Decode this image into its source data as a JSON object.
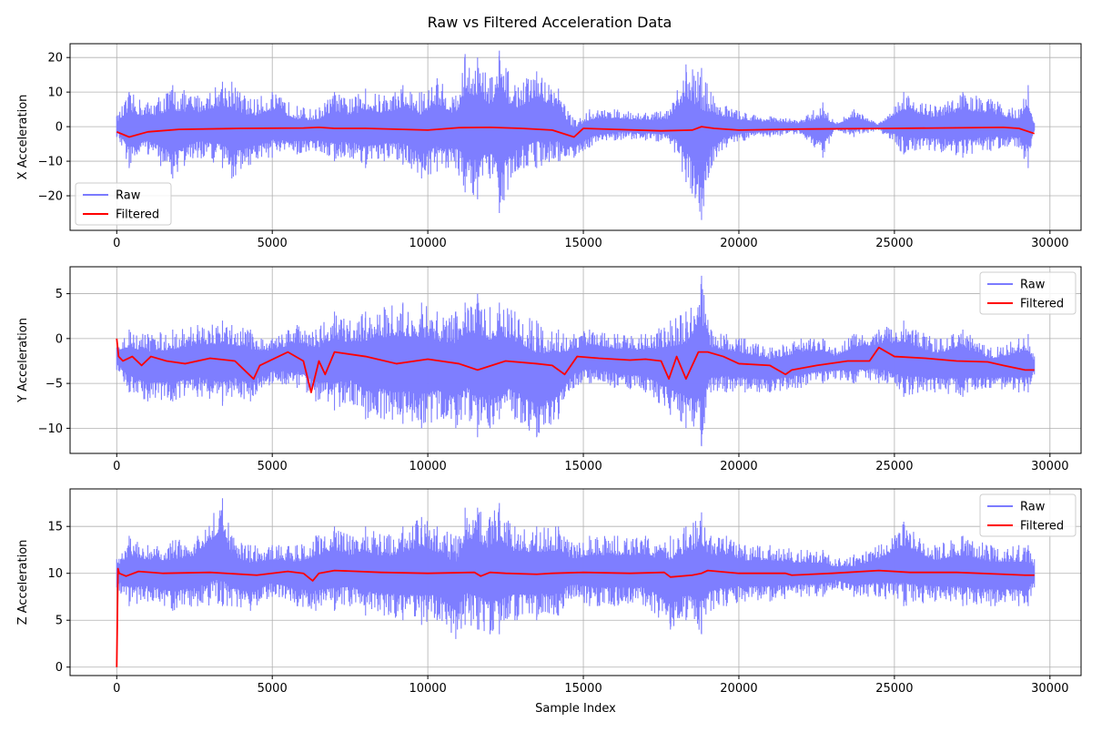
{
  "figure": {
    "title": "Raw vs Filtered Acceleration Data"
  },
  "chart_data": [
    {
      "type": "line",
      "title": "",
      "xlabel": "",
      "ylabel": "X Acceleration",
      "xlim": [
        -1500,
        31000
      ],
      "ylim": [
        -30,
        24
      ],
      "xticks": [
        0,
        5000,
        10000,
        15000,
        20000,
        25000,
        30000
      ],
      "yticks": [
        -20,
        -10,
        0,
        10,
        20
      ],
      "grid": true,
      "legend": "lower-left",
      "series": [
        {
          "name": "Raw",
          "color": "#7b7bff",
          "x": [
            0,
            400,
            1000,
            1800,
            2600,
            3400,
            3700,
            4300,
            5000,
            5800,
            6400,
            7000,
            7500,
            8000,
            8600,
            9200,
            9800,
            10300,
            10900,
            11200,
            11600,
            12000,
            12300,
            12800,
            13500,
            14200,
            14700,
            15200,
            16000,
            17000,
            17800,
            18300,
            18800,
            19100,
            19600,
            20200,
            21000,
            22000,
            22700,
            23100,
            23700,
            24500,
            25300,
            26300,
            27200,
            28100,
            29000,
            29300,
            29500
          ],
          "high": [
            3,
            10,
            7,
            12,
            9,
            13,
            13,
            8,
            10,
            6,
            5,
            10,
            8,
            11,
            9,
            12,
            10,
            14,
            9,
            21,
            20,
            14,
            22,
            12,
            16,
            11,
            2,
            5,
            5,
            4,
            5,
            18,
            17,
            10,
            6,
            4,
            3,
            2,
            7,
            1,
            5,
            1,
            10,
            6,
            10,
            8,
            5,
            12,
            1
          ],
          "low": [
            -3,
            -12,
            -8,
            -15,
            -9,
            -12,
            -15,
            -11,
            -9,
            -8,
            -7,
            -10,
            -9,
            -12,
            -10,
            -11,
            -15,
            -13,
            -12,
            -19,
            -21,
            -15,
            -25,
            -13,
            -12,
            -10,
            -9,
            -6,
            -4,
            -4,
            -5,
            -16,
            -27,
            -12,
            -6,
            -4,
            -3,
            -2,
            -9,
            -1,
            -3,
            -1,
            -8,
            -7,
            -9,
            -7,
            -6,
            -12,
            -1
          ]
        },
        {
          "name": "Filtered",
          "color": "#ff0000",
          "x": [
            0,
            400,
            1000,
            2000,
            4000,
            6000,
            6500,
            7000,
            8000,
            10000,
            11000,
            12000,
            13000,
            14000,
            14700,
            15000,
            16000,
            17500,
            18500,
            18800,
            19200,
            20000,
            22000,
            25000,
            27500,
            28500,
            29000,
            29500
          ],
          "y": [
            -1.5,
            -3,
            -1.5,
            -0.8,
            -0.5,
            -0.4,
            -0.2,
            -0.5,
            -0.5,
            -1,
            -0.3,
            -0.2,
            -0.5,
            -1,
            -3,
            -0.5,
            -0.8,
            -1.2,
            -1,
            0,
            -0.5,
            -1,
            -0.7,
            -0.5,
            -0.3,
            -0.2,
            -0.5,
            -2
          ]
        }
      ]
    },
    {
      "type": "line",
      "title": "",
      "xlabel": "",
      "ylabel": "Y Acceleration",
      "xlim": [
        -1500,
        31000
      ],
      "ylim": [
        -12.8,
        8
      ],
      "xticks": [
        0,
        5000,
        10000,
        15000,
        20000,
        25000,
        30000
      ],
      "yticks": [
        -10,
        -5,
        0,
        5
      ],
      "grid": true,
      "legend": "upper-right",
      "series": [
        {
          "name": "Raw",
          "color": "#7b7bff",
          "x": [
            0,
            400,
            1000,
            1800,
            2600,
            3400,
            3700,
            4300,
            5000,
            5800,
            6400,
            7000,
            7500,
            8000,
            8600,
            9200,
            9800,
            10300,
            10900,
            11200,
            11600,
            12000,
            12300,
            12800,
            13500,
            14200,
            14700,
            15200,
            16000,
            17000,
            17800,
            18300,
            18800,
            19100,
            19600,
            20200,
            21000,
            22000,
            22700,
            23100,
            23700,
            24500,
            25300,
            26300,
            27200,
            28100,
            29000,
            29300,
            29500
          ],
          "high": [
            -1,
            1,
            0.5,
            1,
            1.5,
            2,
            1.5,
            1,
            0,
            1.5,
            1,
            3,
            2,
            3,
            3.5,
            4,
            4,
            3,
            3,
            4,
            5,
            3.5,
            4,
            3,
            2,
            1,
            0.5,
            1,
            0.5,
            0.5,
            2,
            3,
            7,
            1,
            0.5,
            0,
            -1,
            0,
            0,
            -1,
            0.5,
            1,
            2,
            0,
            1,
            -1,
            0,
            0.5,
            -2
          ],
          "low": [
            -3.5,
            -6,
            -7,
            -7,
            -6.5,
            -7.5,
            -6.5,
            -7,
            -5,
            -5.5,
            -7,
            -8,
            -7,
            -9,
            -9,
            -9.5,
            -10,
            -9,
            -10,
            -8.5,
            -11,
            -10,
            -9,
            -9,
            -11,
            -9,
            -5.5,
            -5,
            -5.5,
            -6,
            -8.5,
            -10,
            -12,
            -6,
            -6,
            -6,
            -6,
            -5.5,
            -5,
            -4.5,
            -5,
            -5,
            -6.5,
            -6,
            -6.5,
            -5.5,
            -6,
            -6,
            -4
          ]
        },
        {
          "name": "Filtered",
          "color": "#ff0000",
          "x": [
            0,
            60,
            200,
            500,
            800,
            1100,
            1600,
            2200,
            3000,
            3800,
            4400,
            4600,
            5200,
            5500,
            6000,
            6250,
            6500,
            6700,
            7000,
            8000,
            9000,
            10000,
            11000,
            11600,
            12500,
            13500,
            14000,
            14400,
            14800,
            15500,
            16500,
            17000,
            17500,
            17750,
            18000,
            18300,
            18500,
            18700,
            19000,
            19500,
            20000,
            21000,
            21500,
            21700,
            22500,
            23500,
            24200,
            24500,
            25000,
            26000,
            27000,
            28000,
            28500,
            29200,
            29500
          ],
          "y": [
            0,
            -2,
            -2.5,
            -2,
            -3,
            -2,
            -2.5,
            -2.8,
            -2.2,
            -2.5,
            -4.5,
            -3,
            -2,
            -1.5,
            -2.5,
            -6,
            -2.5,
            -4,
            -1.5,
            -2,
            -2.8,
            -2.3,
            -2.8,
            -3.5,
            -2.5,
            -2.8,
            -3,
            -4,
            -2,
            -2.2,
            -2.4,
            -2.3,
            -2.5,
            -4.5,
            -2,
            -4.5,
            -3,
            -1.5,
            -1.5,
            -2,
            -2.8,
            -3,
            -4,
            -3.5,
            -3,
            -2.5,
            -2.5,
            -1,
            -2,
            -2.2,
            -2.5,
            -2.6,
            -3,
            -3.5,
            -3.5
          ]
        }
      ]
    },
    {
      "type": "line",
      "title": "",
      "xlabel": "Sample Index",
      "ylabel": "Z Acceleration",
      "xlim": [
        -1500,
        31000
      ],
      "ylim": [
        -0.9,
        19
      ],
      "xticks": [
        0,
        5000,
        10000,
        15000,
        20000,
        25000,
        30000
      ],
      "yticks": [
        0,
        5,
        10,
        15
      ],
      "grid": true,
      "legend": "upper-right",
      "series": [
        {
          "name": "Raw",
          "color": "#7b7bff",
          "x": [
            0,
            400,
            1000,
            1800,
            2600,
            3400,
            3700,
            4300,
            5000,
            5800,
            6400,
            7000,
            7500,
            8000,
            8600,
            9200,
            9800,
            10300,
            10900,
            11200,
            11600,
            12000,
            12300,
            12800,
            13500,
            14200,
            14700,
            15200,
            16000,
            17000,
            17800,
            18300,
            18800,
            19100,
            19600,
            20200,
            21000,
            22000,
            22700,
            23100,
            23700,
            24500,
            25300,
            26300,
            27200,
            28100,
            29000,
            29300,
            29500
          ],
          "high": [
            11.5,
            14,
            13,
            13.5,
            14,
            18,
            14,
            13,
            13,
            13,
            14,
            15,
            14,
            15,
            14,
            15,
            16,
            15,
            14,
            17,
            17,
            16,
            17.5,
            15,
            15,
            15,
            13,
            14,
            14,
            14,
            14,
            15,
            16.5,
            14,
            14,
            13,
            13,
            12.5,
            12.5,
            11.5,
            12,
            13,
            15.5,
            13,
            14,
            13,
            13,
            13,
            11.5
          ],
          "low": [
            8.5,
            6.5,
            7,
            6,
            6.5,
            6.5,
            6.5,
            6,
            7.5,
            6.5,
            6,
            6,
            6.5,
            5.5,
            5.5,
            5,
            4.5,
            5,
            3,
            4.5,
            4,
            3.5,
            3.5,
            5,
            5,
            5.5,
            7.5,
            6.5,
            6.5,
            6.5,
            4,
            5,
            3.5,
            6,
            6.5,
            7,
            7,
            7.5,
            7.5,
            8.5,
            7.5,
            7.5,
            6.5,
            7,
            6.5,
            6.5,
            6.5,
            6.5,
            8.5
          ]
        },
        {
          "name": "Filtered",
          "color": "#ff0000",
          "x": [
            0,
            40,
            80,
            300,
            700,
            1500,
            3000,
            4500,
            5500,
            6000,
            6300,
            6500,
            7000,
            8500,
            10000,
            11500,
            11700,
            12000,
            12500,
            13500,
            14000,
            15000,
            16500,
            17600,
            17800,
            18500,
            18800,
            19000,
            20000,
            21500,
            21700,
            23000,
            24500,
            25500,
            27000,
            28500,
            29200,
            29500
          ],
          "y": [
            0,
            10.5,
            10,
            9.7,
            10.2,
            10,
            10.1,
            9.8,
            10.2,
            10,
            9.2,
            10,
            10.3,
            10.1,
            10,
            10.1,
            9.7,
            10.1,
            10,
            9.9,
            10,
            10.1,
            10,
            10.1,
            9.6,
            9.8,
            10,
            10.3,
            10,
            10,
            9.8,
            10,
            10.3,
            10.1,
            10.1,
            9.9,
            9.8,
            9.8
          ]
        }
      ]
    }
  ]
}
